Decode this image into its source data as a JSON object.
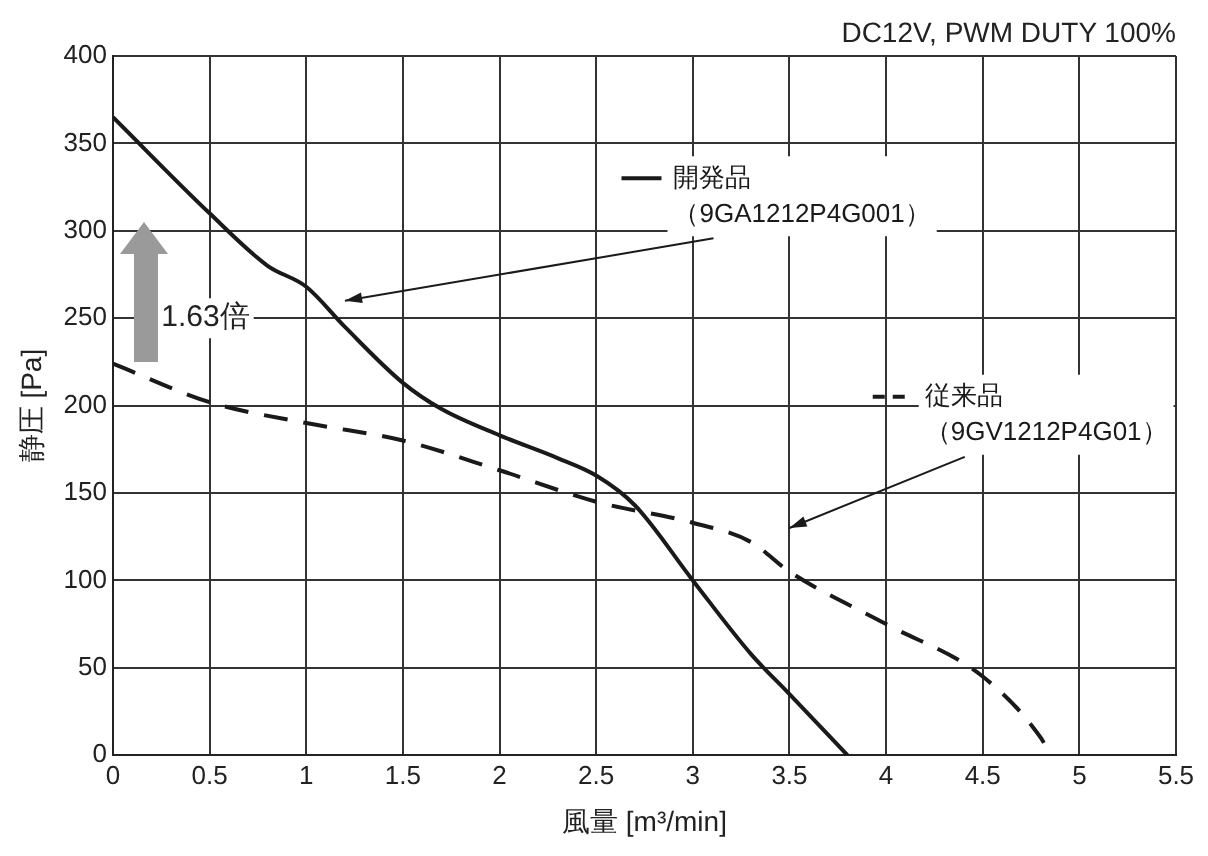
{
  "chart_data": {
    "type": "line",
    "xlabel": "風量 [m³/min]",
    "ylabel": "静圧 [Pa]",
    "xlim": [
      0,
      5.5
    ],
    "xticks": [
      0,
      0.5,
      1,
      1.5,
      2,
      2.5,
      3,
      3.5,
      4,
      4.5,
      5,
      5.5
    ],
    "ylim": [
      0,
      400
    ],
    "yticks": [
      0,
      50,
      100,
      150,
      200,
      250,
      300,
      350,
      400
    ],
    "grid": true,
    "legend": "top right",
    "marker": "none",
    "annotations": [
      "DC12V, PWM DUTY 100%",
      "1.63倍"
    ],
    "series": [
      {
        "name": "開発品（9GA1212P4G001）",
        "color": "#1a1a1a",
        "line_style": "solid",
        "x": [
          0,
          0.5,
          0.8,
          1,
          1.2,
          1.5,
          1.7,
          2,
          2.3,
          2.5,
          2.7,
          3,
          3.3,
          3.5,
          3.8
        ],
        "values": [
          365,
          310,
          280,
          268,
          245,
          213,
          198,
          183,
          170,
          160,
          143,
          100,
          58,
          35,
          0
        ]
      },
      {
        "name": "従来品（9GV1212P4G01）",
        "color": "#1a1a1a",
        "line_style": "dashed",
        "x": [
          0,
          0.5,
          1,
          1.5,
          2,
          2.5,
          3,
          3.3,
          3.5,
          4,
          4.5,
          4.8,
          4.85
        ],
        "values": [
          224,
          202,
          190,
          180,
          163,
          145,
          133,
          122,
          105,
          75,
          45,
          10,
          0
        ]
      }
    ]
  }
}
